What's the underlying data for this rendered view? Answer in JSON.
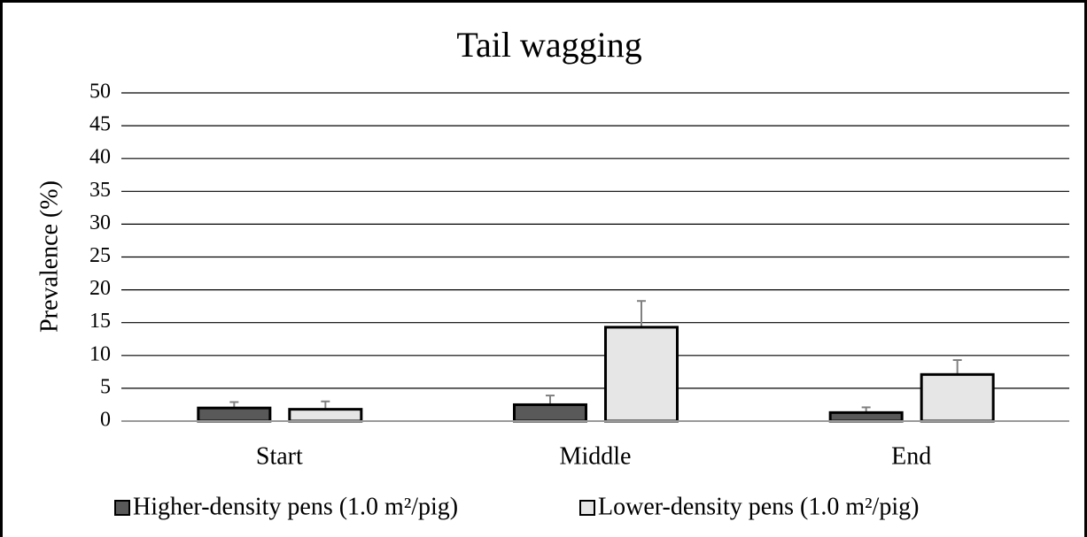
{
  "chart_data": {
    "type": "bar",
    "title": "Tail wagging",
    "y_label": "Prevalence (%)",
    "categories": [
      "Start",
      "Middle",
      "End"
    ],
    "series": [
      {
        "name": "Higher-density pens (1.0 m²/pig)",
        "color": "#595959",
        "values": [
          2.0,
          2.5,
          1.3
        ],
        "errors": [
          0.9,
          1.4,
          0.8
        ]
      },
      {
        "name": "Lower-density pens (1.0 m²/pig)",
        "color": "#e7e6e6",
        "values": [
          1.8,
          14.3,
          7.1
        ],
        "errors": [
          1.2,
          4.0,
          2.2
        ]
      }
    ],
    "ylim": [
      0,
      50
    ],
    "yticks": [
      0,
      5,
      10,
      15,
      20,
      25,
      30,
      35,
      40,
      45,
      50
    ],
    "grid": true,
    "legend": "bottom"
  }
}
